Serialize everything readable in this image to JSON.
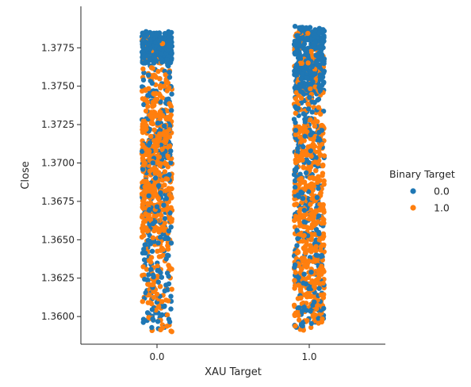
{
  "chart_data": {
    "type": "scatter",
    "subtype": "strip",
    "title": "",
    "xlabel": "XAU Target",
    "ylabel": "Close",
    "categories": [
      "0.0",
      "1.0"
    ],
    "ylim": [
      1.3582,
      1.3802
    ],
    "yticks": [
      1.36,
      1.3625,
      1.365,
      1.3675,
      1.37,
      1.3725,
      1.375,
      1.3775
    ],
    "ytick_labels": [
      "1.3600",
      "1.3625",
      "1.3650",
      "1.3675",
      "1.3700",
      "1.3725",
      "1.3750",
      "1.3775"
    ],
    "legend": {
      "title": "Binary Target",
      "placement": "right",
      "entries": [
        "0.0",
        "1.0"
      ]
    },
    "grid": false,
    "series": [
      {
        "name": "0.0",
        "color": "#1f77b4",
        "groups": [
          {
            "category": "0.0",
            "y_range": [
              1.3592,
              1.3786
            ],
            "density_peak": [
              1.3765,
              1.3785
            ]
          },
          {
            "category": "1.0",
            "y_range": [
              1.3593,
              1.3789
            ],
            "density_peak": [
              1.3745,
              1.3789
            ]
          }
        ]
      },
      {
        "name": "1.0",
        "color": "#ff7f0e",
        "groups": [
          {
            "category": "0.0",
            "y_range": [
              1.359,
              1.3782
            ],
            "density_peak": [
              1.3655,
              1.3735
            ]
          },
          {
            "category": "1.0",
            "y_range": [
              1.3591,
              1.3786
            ],
            "density_peak": [
              1.3605,
              1.3725
            ]
          }
        ]
      }
    ]
  }
}
